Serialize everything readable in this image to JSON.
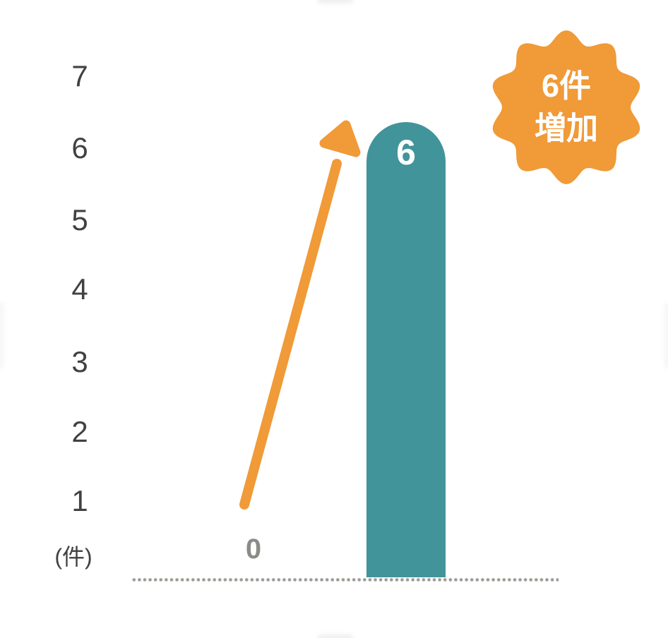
{
  "colors": {
    "bar": "#42949B",
    "accent": "#F09A38",
    "axis_text": "#414141",
    "zero_label": "#8C8C86",
    "baseline_dots": "#9C9C96",
    "badge_text": "#FFFFFF",
    "bar_value_text": "#FFFFFF"
  },
  "chart_data": {
    "type": "bar",
    "title": "",
    "y_axis": {
      "unit_label": "(件)",
      "ticks": [
        "7",
        "6",
        "5",
        "4",
        "3",
        "2",
        "1"
      ],
      "range": [
        0,
        7
      ],
      "gridlines": false
    },
    "x_axis": {
      "baseline_style": "dotted",
      "categories_visible": false
    },
    "points": [
      {
        "label": "0",
        "value": 0
      },
      {
        "label": "6",
        "value": 6
      }
    ],
    "bars": [
      {
        "value": 6,
        "label": "6",
        "color": "#42949B"
      }
    ],
    "annotation": {
      "arrow": {
        "from_value": 0,
        "to_value": 6,
        "color": "#F09A38",
        "direction": "up"
      },
      "badge": {
        "lines": [
          "6件",
          "増加"
        ],
        "full_text": "6件増加",
        "shape": "scalloped-seal",
        "color": "#F09A38"
      }
    }
  }
}
